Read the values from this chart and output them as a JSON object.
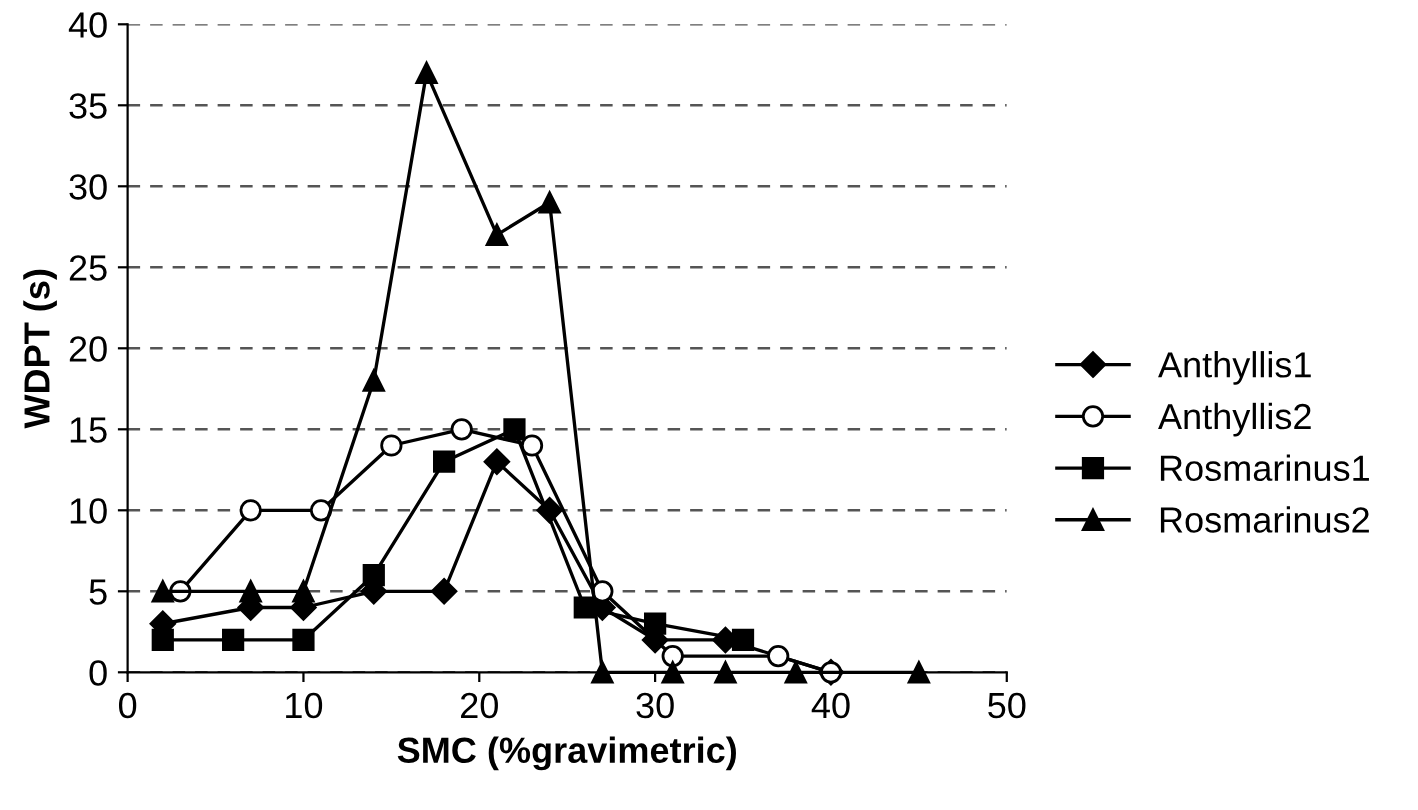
{
  "chart_data": {
    "type": "line",
    "xlabel": "SMC (%gravimetric)",
    "ylabel": "WDPT (s)",
    "xlim": [
      0,
      50
    ],
    "xticks": [
      0,
      10,
      20,
      30,
      40,
      50
    ],
    "ylim": [
      0,
      40
    ],
    "yticks": [
      0,
      5,
      10,
      15,
      20,
      25,
      30,
      35,
      40
    ],
    "grid": "y",
    "legend": "right",
    "line_style": "solid",
    "series": [
      {
        "name": "Anthyllis1",
        "color": "#000000",
        "marker": "diamond",
        "x": [
          2,
          7,
          10,
          14,
          18,
          21,
          24,
          27,
          30,
          34,
          40
        ],
        "values": [
          3,
          4,
          4,
          5,
          5,
          13,
          10,
          4,
          2,
          2,
          0
        ]
      },
      {
        "name": "Anthyllis2",
        "color": "#000000",
        "marker": "circle",
        "x": [
          3,
          7,
          11,
          15,
          19,
          23,
          27,
          31,
          37,
          40
        ],
        "values": [
          5,
          10,
          10,
          14,
          15,
          14,
          5,
          1,
          1,
          0
        ]
      },
      {
        "name": "Rosmarinus1",
        "color": "#000000",
        "marker": "square",
        "x": [
          2,
          6,
          10,
          14,
          18,
          22,
          26,
          30,
          35
        ],
        "values": [
          2,
          2,
          2,
          6,
          13,
          15,
          4,
          3,
          2
        ]
      },
      {
        "name": "Rosmarinus2",
        "color": "#000000",
        "marker": "triangle",
        "x": [
          2,
          7,
          10,
          14,
          17,
          21,
          24,
          27,
          31,
          34,
          38,
          45
        ],
        "values": [
          5,
          5,
          5,
          18,
          37,
          27,
          29,
          0,
          0,
          0,
          0,
          0
        ]
      }
    ]
  }
}
